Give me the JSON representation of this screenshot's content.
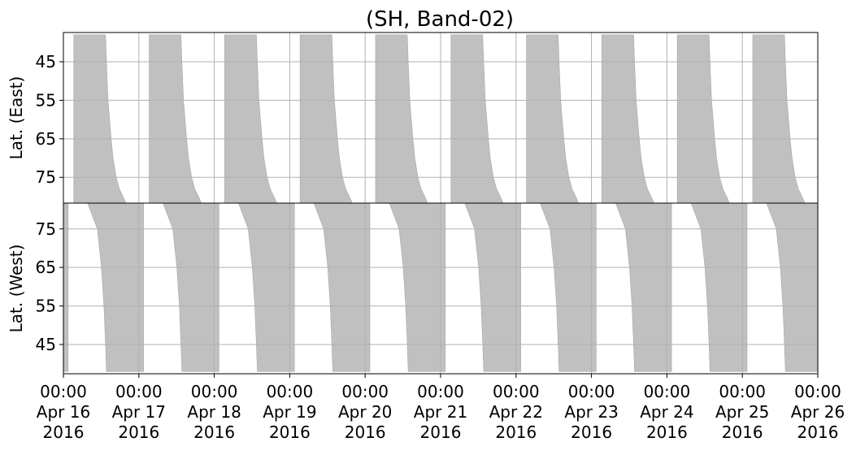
{
  "chart_data": {
    "type": "coverage",
    "title": "(SH, Band-02)",
    "xlim": [
      "2016-04-16T00:00",
      "2016-04-26T00:00"
    ],
    "xticks": [
      {
        "value": "2016-04-16T00:00",
        "label": [
          "00:00",
          "Apr 16",
          "2016"
        ]
      },
      {
        "value": "2016-04-17T00:00",
        "label": [
          "00:00",
          "Apr 17",
          "2016"
        ]
      },
      {
        "value": "2016-04-18T00:00",
        "label": [
          "00:00",
          "Apr 18",
          "2016"
        ]
      },
      {
        "value": "2016-04-19T00:00",
        "label": [
          "00:00",
          "Apr 19",
          "2016"
        ]
      },
      {
        "value": "2016-04-20T00:00",
        "label": [
          "00:00",
          "Apr 20",
          "2016"
        ]
      },
      {
        "value": "2016-04-21T00:00",
        "label": [
          "00:00",
          "Apr 21",
          "2016"
        ]
      },
      {
        "value": "2016-04-22T00:00",
        "label": [
          "00:00",
          "Apr 22",
          "2016"
        ]
      },
      {
        "value": "2016-04-23T00:00",
        "label": [
          "00:00",
          "Apr 23",
          "2016"
        ]
      },
      {
        "value": "2016-04-24T00:00",
        "label": [
          "00:00",
          "Apr 24",
          "2016"
        ]
      },
      {
        "value": "2016-04-25T00:00",
        "label": [
          "00:00",
          "Apr 25",
          "2016"
        ]
      },
      {
        "value": "2016-04-26T00:00",
        "label": [
          "00:00",
          "Apr 26",
          "2016"
        ]
      }
    ],
    "grid": true,
    "panels": [
      {
        "ylabel": "Lat. (East)",
        "inverted": true,
        "ylim": [
          37.4,
          81.7
        ],
        "yticks": [
          45,
          55,
          65,
          75
        ],
        "color": "#c0c0c0",
        "lat": [
          38,
          45,
          55,
          65,
          70,
          75,
          78,
          80,
          81.7
        ],
        "start_hour": [
          3.3,
          3.3,
          3.3,
          3.3,
          3.3,
          3.3,
          3.3,
          3.3,
          3.3
        ],
        "end_hour": [
          13.4,
          13.7,
          14.2,
          15.2,
          15.8,
          16.8,
          17.8,
          19.0,
          19.9
        ]
      },
      {
        "ylabel": "Lat. (West)",
        "inverted": false,
        "ylim": [
          37.4,
          81.7
        ],
        "yticks": [
          45,
          55,
          65,
          75
        ],
        "color": "#c0c0c0",
        "lat": [
          38,
          45,
          55,
          65,
          75,
          81.7
        ],
        "start_hour": [
          13.7,
          13.4,
          12.9,
          12.1,
          10.8,
          7.7
        ],
        "end_hour": [
          25.5,
          25.5,
          25.5,
          25.5,
          25.5,
          25.5
        ]
      }
    ]
  }
}
